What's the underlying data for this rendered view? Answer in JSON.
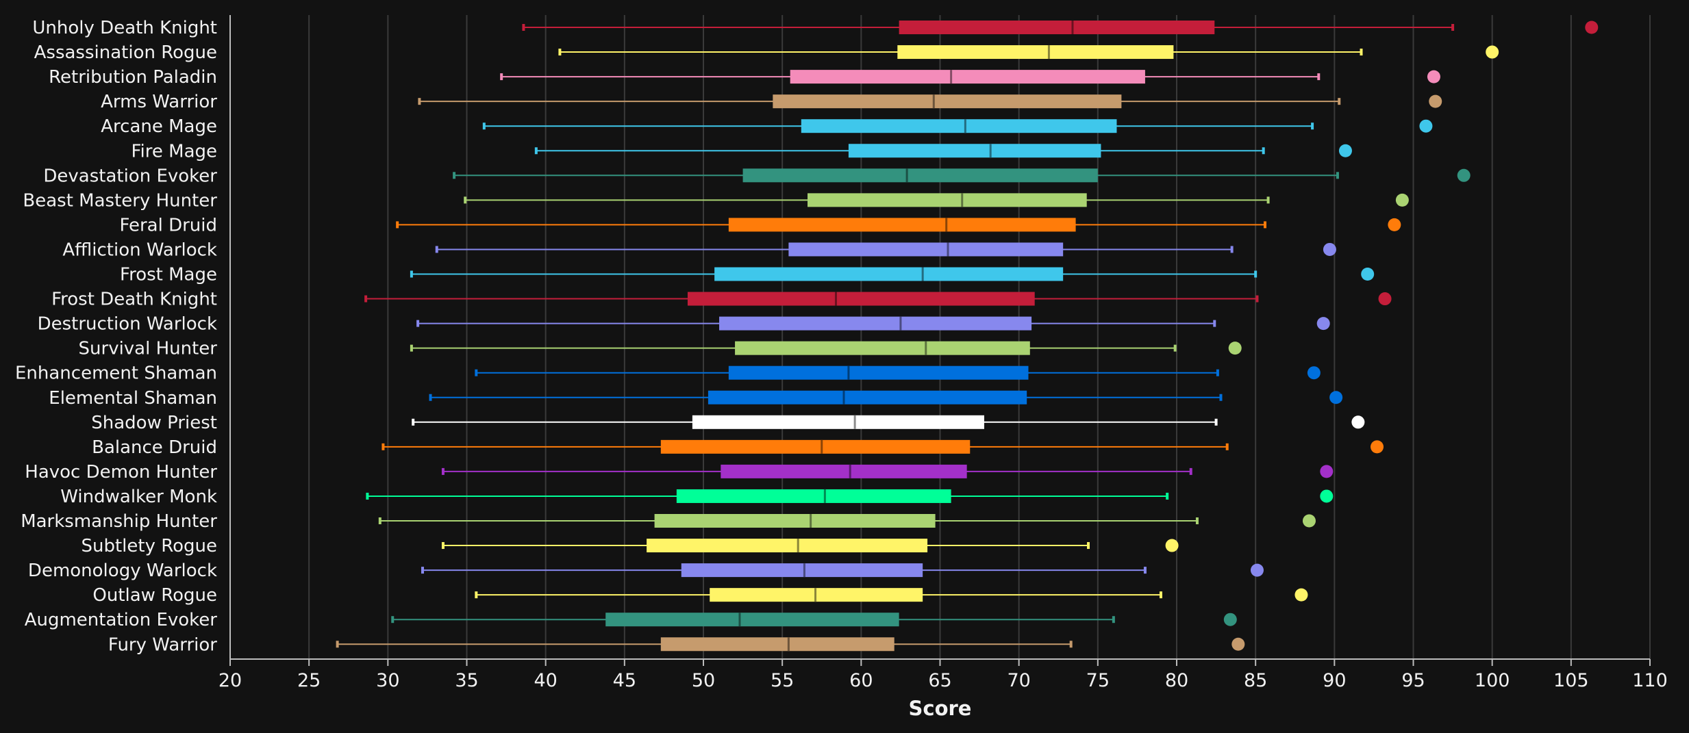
{
  "chart_data": {
    "type": "box",
    "xlabel": "Score",
    "xlim": [
      20,
      110
    ],
    "xticks": [
      20,
      25,
      30,
      35,
      40,
      45,
      50,
      55,
      60,
      65,
      70,
      75,
      80,
      85,
      90,
      95,
      100,
      105,
      110
    ],
    "grid": "vertical",
    "series": [
      {
        "name": "Unholy Death Knight",
        "color": "#C41E3A",
        "min": 38.6,
        "q1": 62.4,
        "median": 73.4,
        "q3": 82.4,
        "max": 97.5,
        "top": 106.3
      },
      {
        "name": "Assassination Rogue",
        "color": "#FFF468",
        "min": 40.9,
        "q1": 62.3,
        "median": 71.9,
        "q3": 79.8,
        "max": 91.7,
        "top": 100.0
      },
      {
        "name": "Retribution Paladin",
        "color": "#F48CBA",
        "min": 37.2,
        "q1": 55.5,
        "median": 65.7,
        "q3": 78.0,
        "max": 89.0,
        "top": 96.3
      },
      {
        "name": "Arms Warrior",
        "color": "#C69B6D",
        "min": 32.0,
        "q1": 54.4,
        "median": 64.6,
        "q3": 76.5,
        "max": 90.3,
        "top": 96.4
      },
      {
        "name": "Arcane Mage",
        "color": "#3FC7EB",
        "min": 36.1,
        "q1": 56.2,
        "median": 66.6,
        "q3": 76.2,
        "max": 88.6,
        "top": 95.8
      },
      {
        "name": "Fire Mage",
        "color": "#3FC7EB",
        "min": 39.4,
        "q1": 59.2,
        "median": 68.2,
        "q3": 75.2,
        "max": 85.5,
        "top": 90.7
      },
      {
        "name": "Devastation Evoker",
        "color": "#33937F",
        "min": 34.2,
        "q1": 52.5,
        "median": 62.9,
        "q3": 75.0,
        "max": 90.2,
        "top": 98.2
      },
      {
        "name": "Beast Mastery Hunter",
        "color": "#AAD372",
        "min": 34.9,
        "q1": 56.6,
        "median": 66.4,
        "q3": 74.3,
        "max": 85.8,
        "top": 94.3
      },
      {
        "name": "Feral Druid",
        "color": "#FF7C0A",
        "min": 30.6,
        "q1": 51.6,
        "median": 65.4,
        "q3": 73.6,
        "max": 85.6,
        "top": 93.8
      },
      {
        "name": "Affliction Warlock",
        "color": "#8788EE",
        "min": 33.1,
        "q1": 55.4,
        "median": 65.5,
        "q3": 72.8,
        "max": 83.5,
        "top": 89.7
      },
      {
        "name": "Frost Mage",
        "color": "#3FC7EB",
        "min": 31.5,
        "q1": 50.7,
        "median": 63.9,
        "q3": 72.8,
        "max": 85.0,
        "top": 92.1
      },
      {
        "name": "Frost Death Knight",
        "color": "#C41E3A",
        "min": 28.6,
        "q1": 49.0,
        "median": 58.4,
        "q3": 71.0,
        "max": 85.1,
        "top": 93.2
      },
      {
        "name": "Destruction Warlock",
        "color": "#8788EE",
        "min": 31.9,
        "q1": 51.0,
        "median": 62.5,
        "q3": 70.8,
        "max": 82.4,
        "top": 89.3
      },
      {
        "name": "Survival Hunter",
        "color": "#AAD372",
        "min": 31.5,
        "q1": 52.0,
        "median": 64.1,
        "q3": 70.7,
        "max": 79.9,
        "top": 83.7
      },
      {
        "name": "Enhancement Shaman",
        "color": "#0070DD",
        "min": 35.6,
        "q1": 51.6,
        "median": 59.2,
        "q3": 70.6,
        "max": 82.6,
        "top": 88.7
      },
      {
        "name": "Elemental Shaman",
        "color": "#0070DD",
        "min": 32.7,
        "q1": 50.3,
        "median": 58.9,
        "q3": 70.5,
        "max": 82.8,
        "top": 90.1
      },
      {
        "name": "Shadow Priest",
        "color": "#FFFFFF",
        "min": 31.6,
        "q1": 49.3,
        "median": 59.6,
        "q3": 67.8,
        "max": 82.5,
        "top": 91.5
      },
      {
        "name": "Balance Druid",
        "color": "#FF7C0A",
        "min": 29.7,
        "q1": 47.3,
        "median": 57.5,
        "q3": 66.9,
        "max": 83.2,
        "top": 92.7
      },
      {
        "name": "Havoc Demon Hunter",
        "color": "#A330C9",
        "min": 33.5,
        "q1": 51.1,
        "median": 59.3,
        "q3": 66.7,
        "max": 80.9,
        "top": 89.5
      },
      {
        "name": "Windwalker Monk",
        "color": "#00FF98",
        "min": 28.7,
        "q1": 48.3,
        "median": 57.7,
        "q3": 65.7,
        "max": 79.4,
        "top": 89.5
      },
      {
        "name": "Marksmanship Hunter",
        "color": "#AAD372",
        "min": 29.5,
        "q1": 46.9,
        "median": 56.8,
        "q3": 64.7,
        "max": 81.3,
        "top": 88.4
      },
      {
        "name": "Subtlety Rogue",
        "color": "#FFF468",
        "min": 33.5,
        "q1": 46.4,
        "median": 56.0,
        "q3": 64.2,
        "max": 74.4,
        "top": 79.7
      },
      {
        "name": "Demonology Warlock",
        "color": "#8788EE",
        "min": 32.2,
        "q1": 48.6,
        "median": 56.4,
        "q3": 63.9,
        "max": 78.0,
        "top": 85.1
      },
      {
        "name": "Outlaw Rogue",
        "color": "#FFF468",
        "min": 35.6,
        "q1": 50.4,
        "median": 57.1,
        "q3": 63.9,
        "max": 79.0,
        "top": 87.9
      },
      {
        "name": "Augmentation Evoker",
        "color": "#33937F",
        "min": 30.3,
        "q1": 43.8,
        "median": 52.3,
        "q3": 62.4,
        "max": 76.0,
        "top": 83.4
      },
      {
        "name": "Fury Warrior",
        "color": "#C69B6D",
        "min": 26.8,
        "q1": 47.3,
        "median": 55.4,
        "q3": 62.1,
        "max": 73.3,
        "top": 83.9
      }
    ]
  }
}
